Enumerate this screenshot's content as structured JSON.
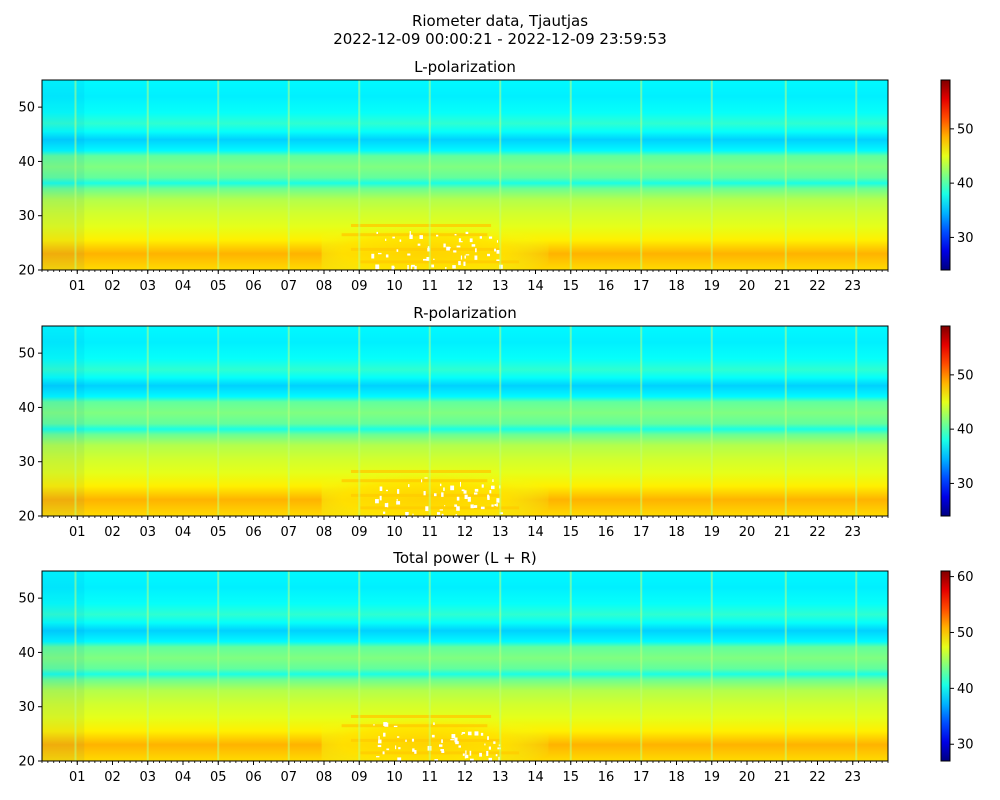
{
  "figure": {
    "title_line1": "Riometer data, Tjautjas",
    "title_line2": "2022-12-09 00:00:21 - 2022-12-09 23:59:53"
  },
  "chart_data": [
    {
      "type": "heatmap",
      "title": "L-polarization",
      "xlabel": "",
      "ylabel": "",
      "x_range_hours": [
        0,
        24
      ],
      "x_tick_labels": [
        "01",
        "02",
        "03",
        "04",
        "05",
        "06",
        "07",
        "08",
        "09",
        "10",
        "11",
        "12",
        "13",
        "14",
        "15",
        "16",
        "17",
        "18",
        "19",
        "20",
        "21",
        "22",
        "23"
      ],
      "ylim": [
        20,
        55
      ],
      "y_ticks": [
        20,
        30,
        40,
        50
      ],
      "colormap": "jet",
      "colorbar_range": [
        24,
        59
      ],
      "colorbar_ticks": [
        30,
        40,
        50
      ],
      "saturated_region": {
        "hours": [
          8.5,
          13.8
        ],
        "y": [
          20,
          29
        ]
      },
      "bright_vertical_lines_hours": [
        0.95,
        3,
        5,
        7,
        9,
        11,
        13,
        15,
        17,
        19,
        21.1,
        23.1
      ]
    },
    {
      "type": "heatmap",
      "title": "R-polarization",
      "xlabel": "",
      "ylabel": "",
      "x_range_hours": [
        0,
        24
      ],
      "x_tick_labels": [
        "01",
        "02",
        "03",
        "04",
        "05",
        "06",
        "07",
        "08",
        "09",
        "10",
        "11",
        "12",
        "13",
        "14",
        "15",
        "16",
        "17",
        "18",
        "19",
        "20",
        "21",
        "22",
        "23"
      ],
      "ylim": [
        20,
        55
      ],
      "y_ticks": [
        20,
        30,
        40,
        50
      ],
      "colormap": "jet",
      "colorbar_range": [
        24,
        59
      ],
      "colorbar_ticks": [
        30,
        40,
        50
      ],
      "saturated_region": {
        "hours": [
          8.5,
          13.8
        ],
        "y": [
          20,
          29
        ]
      },
      "bright_vertical_lines_hours": [
        0.95,
        3,
        5,
        7,
        9,
        11,
        13,
        15,
        17,
        19,
        21.1,
        23.1
      ]
    },
    {
      "type": "heatmap",
      "title": "Total power (L + R)",
      "xlabel": "",
      "ylabel": "",
      "x_range_hours": [
        0,
        24
      ],
      "x_tick_labels": [
        "01",
        "02",
        "03",
        "04",
        "05",
        "06",
        "07",
        "08",
        "09",
        "10",
        "11",
        "12",
        "13",
        "14",
        "15",
        "16",
        "17",
        "18",
        "19",
        "20",
        "21",
        "22",
        "23"
      ],
      "ylim": [
        20,
        55
      ],
      "y_ticks": [
        20,
        30,
        40,
        50
      ],
      "colormap": "jet",
      "colorbar_range": [
        27,
        61
      ],
      "colorbar_ticks": [
        30,
        40,
        50,
        60
      ],
      "saturated_region": {
        "hours": [
          8.5,
          13.8
        ],
        "y": [
          20,
          29
        ]
      },
      "bright_vertical_lines_hours": [
        0.95,
        3,
        5,
        7,
        9,
        11,
        13,
        15,
        17,
        19,
        21.1,
        23.1
      ]
    }
  ]
}
